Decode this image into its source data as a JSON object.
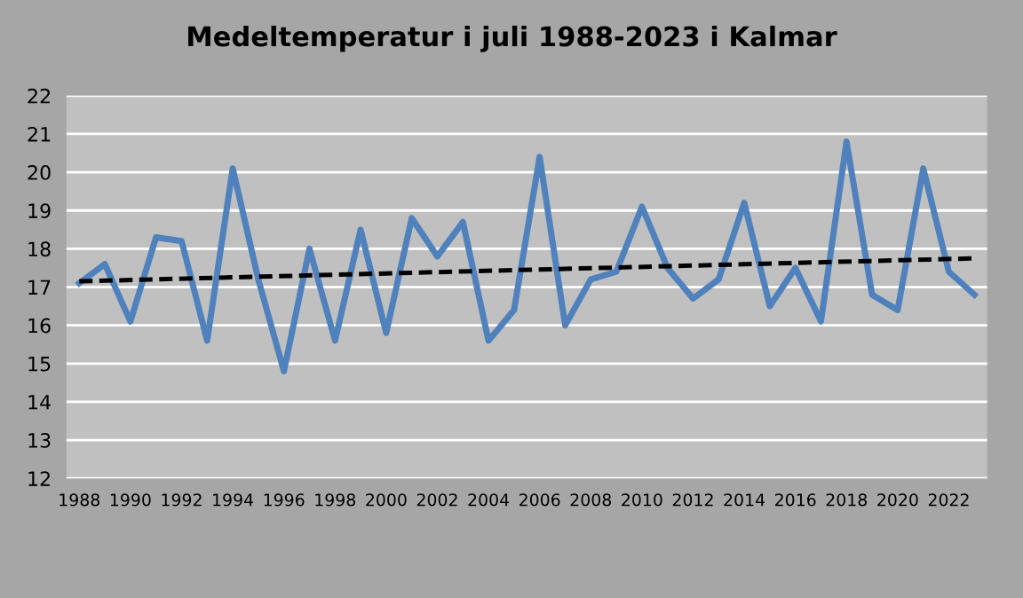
{
  "chart_data": {
    "type": "line",
    "title": "Medeltemperatur i juli 1988-2023 i Kalmar",
    "x": [
      1988,
      1989,
      1990,
      1991,
      1992,
      1993,
      1994,
      1995,
      1996,
      1997,
      1998,
      1999,
      2000,
      2001,
      2002,
      2003,
      2004,
      2005,
      2006,
      2007,
      2008,
      2009,
      2010,
      2011,
      2012,
      2013,
      2014,
      2015,
      2016,
      2017,
      2018,
      2019,
      2020,
      2021,
      2022,
      2023
    ],
    "series": [
      {
        "color": "#4f81bd",
        "line_style": "solid",
        "values": [
          17.1,
          17.6,
          16.1,
          18.3,
          18.2,
          15.6,
          20.1,
          17.2,
          14.8,
          18.0,
          15.6,
          18.5,
          15.8,
          18.8,
          17.8,
          18.7,
          15.6,
          16.4,
          20.4,
          16.0,
          17.2,
          17.4,
          19.1,
          17.5,
          16.7,
          17.2,
          19.2,
          16.5,
          17.5,
          16.1,
          20.8,
          16.8,
          16.4,
          20.1,
          17.4,
          16.8
        ]
      },
      {
        "type": "line",
        "color": "#000000",
        "line_style": "dashed",
        "x": [
          1988,
          2023
        ],
        "values": [
          17.15,
          17.75
        ]
      }
    ],
    "xlim": [
      1987.5,
      2023.5
    ],
    "xticks": [
      1988,
      1990,
      1992,
      1994,
      1996,
      1998,
      2000,
      2002,
      2004,
      2006,
      2008,
      2010,
      2012,
      2014,
      2016,
      2018,
      2020,
      2022
    ],
    "ylim": [
      12,
      22
    ],
    "yticks": [
      12,
      13,
      14,
      15,
      16,
      17,
      18,
      19,
      20,
      21,
      22
    ],
    "grid": "y",
    "legend": false,
    "marker": "none"
  }
}
